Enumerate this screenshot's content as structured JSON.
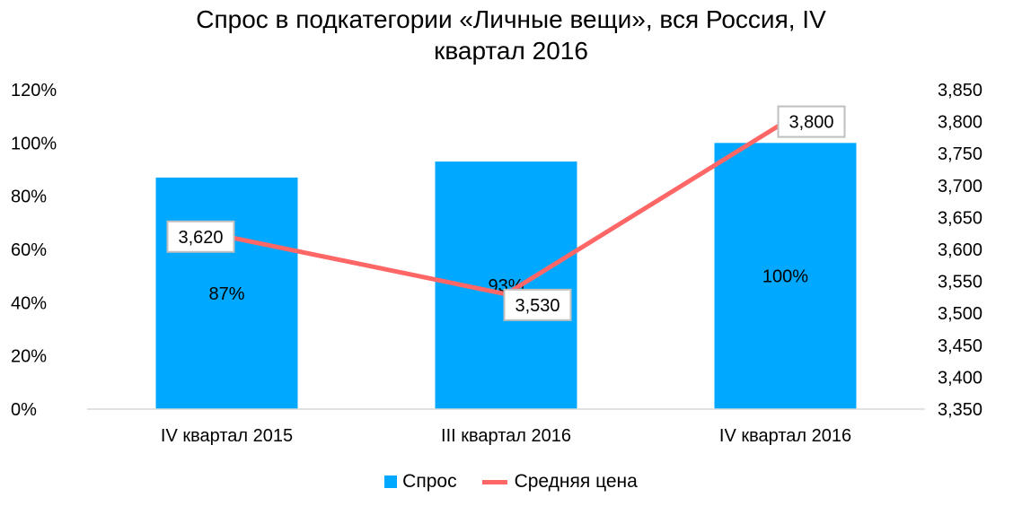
{
  "chart_data": {
    "type": "bar",
    "title": "Спрос в подкатегории «Личные вещи», вся Россия, IV квартал 2016",
    "title_lines": [
      "Спрос в подкатегории «Личные вещи», вся Россия, IV",
      "квартал 2016"
    ],
    "categories": [
      "IV квартал 2015",
      "III квартал 2016",
      "IV квартал 2016"
    ],
    "series": [
      {
        "name": "Спрос",
        "type": "bar",
        "axis": "left",
        "values": [
          87,
          93,
          100
        ],
        "value_labels": [
          "87%",
          "93%",
          "100%"
        ],
        "color": "#00A8FF"
      },
      {
        "name": "Средняя цена",
        "type": "line",
        "axis": "right",
        "values": [
          3620,
          3530,
          3800
        ],
        "value_labels": [
          "3,620",
          "3,530",
          "3,800"
        ],
        "color": "#FF6666"
      }
    ],
    "y_left": {
      "min": 0,
      "max": 120,
      "ticks": [
        0,
        20,
        40,
        60,
        80,
        100,
        120
      ],
      "tick_labels": [
        "0%",
        "20%",
        "40%",
        "60%",
        "80%",
        "100%",
        "120%"
      ]
    },
    "y_right": {
      "min": 3350,
      "max": 3850,
      "ticks": [
        3350,
        3400,
        3450,
        3500,
        3550,
        3600,
        3650,
        3700,
        3750,
        3800,
        3850
      ],
      "tick_labels": [
        "3,350",
        "3,400",
        "3,450",
        "3,500",
        "3,550",
        "3,600",
        "3,650",
        "3,700",
        "3,750",
        "3,800",
        "3,850"
      ]
    },
    "grid": false,
    "legend_position": "bottom"
  }
}
